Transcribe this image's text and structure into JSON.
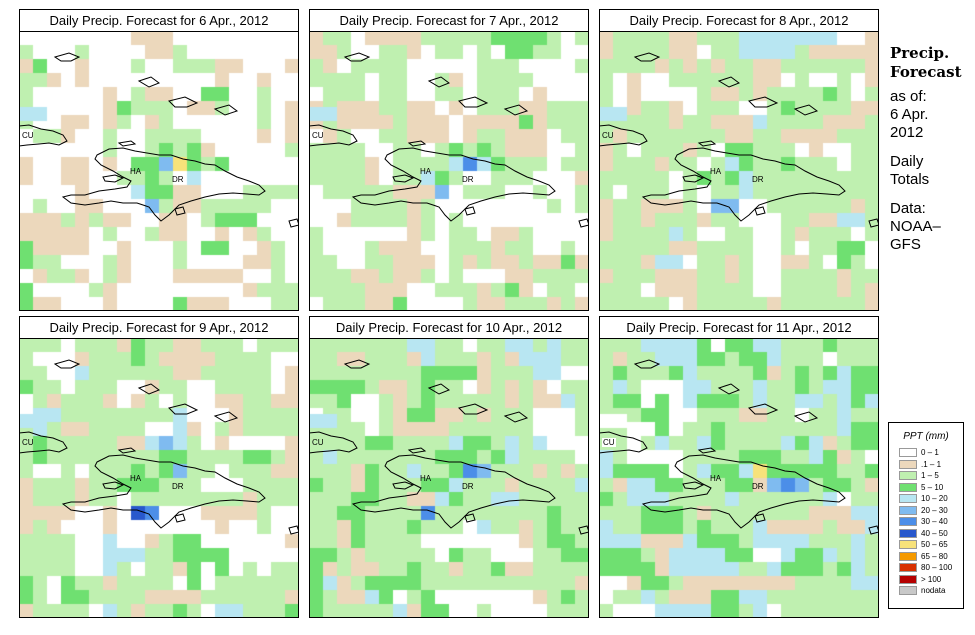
{
  "panels": [
    {
      "title": "Daily Precip. Forecast for  6 Apr., 2012",
      "day": 6
    },
    {
      "title": "Daily Precip. Forecast for  7 Apr., 2012",
      "day": 7
    },
    {
      "title": "Daily Precip. Forecast for  8 Apr., 2012",
      "day": 8
    },
    {
      "title": "Daily Precip. Forecast for  9 Apr., 2012",
      "day": 9
    },
    {
      "title": "Daily Precip. Forecast for  10 Apr., 2012",
      "day": 10
    },
    {
      "title": "Daily Precip. Forecast for  11 Apr., 2012",
      "day": 11
    }
  ],
  "map_labels": {
    "cuba": "CU",
    "haiti": "HA",
    "dominican_republic": "DR"
  },
  "info": {
    "heading_line1": "Precip.",
    "heading_line2": "Forecast",
    "asof_line1": "as of:",
    "asof_line2": "6 Apr.",
    "asof_line3": "2012",
    "type_line1": "Daily",
    "type_line2": "Totals",
    "data_line1": "Data:",
    "data_line2": "NOAA–",
    "data_line3": "GFS"
  },
  "legend": {
    "title": "PPT (mm)",
    "items": [
      {
        "label": "0 – 1",
        "color": "#ffffff"
      },
      {
        "label": ".1 – 1",
        "color": "#ecd8bc"
      },
      {
        "label": "1 – 5",
        "color": "#bff0b0"
      },
      {
        "label": "5 – 10",
        "color": "#6fe071"
      },
      {
        "label": "10 – 20",
        "color": "#b8e6f2"
      },
      {
        "label": "20 – 30",
        "color": "#7fbbf0"
      },
      {
        "label": "30 – 40",
        "color": "#4c8ee8"
      },
      {
        "label": "40 – 50",
        "color": "#2858cc"
      },
      {
        "label": "50 – 65",
        "color": "#f7e27a"
      },
      {
        "label": "65 – 80",
        "color": "#f59a00"
      },
      {
        "label": "80 – 100",
        "color": "#d83000"
      },
      {
        "label": "> 100",
        "color": "#b50000"
      },
      {
        "label": "nodata",
        "color": "#c8c8c8"
      }
    ]
  }
}
